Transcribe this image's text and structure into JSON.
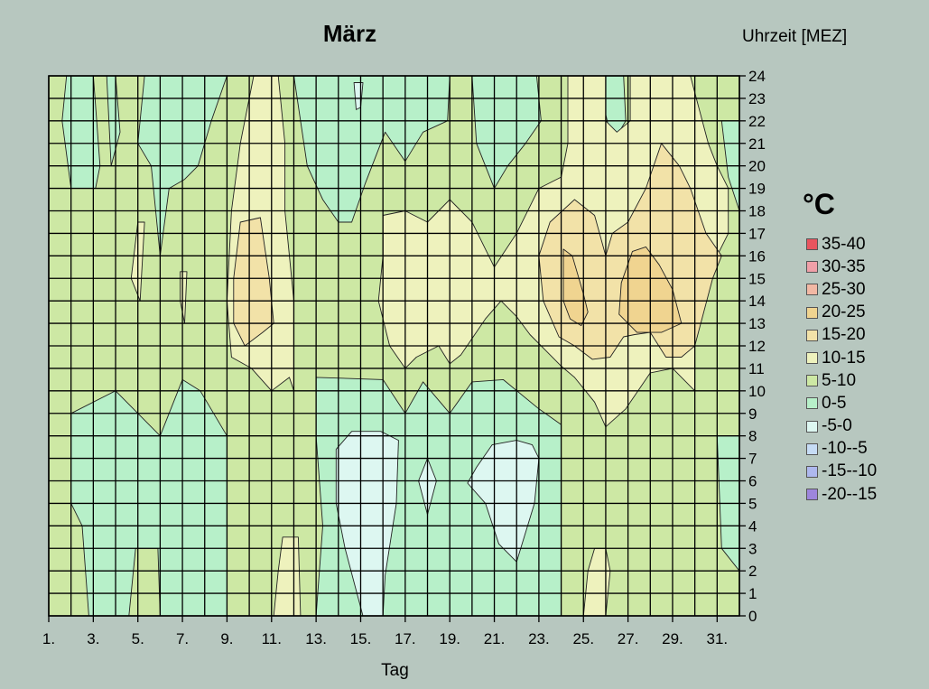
{
  "chart_data": {
    "type": "heatmap",
    "title": "März",
    "xlabel": "Tag",
    "ylabel_right": "Uhrzeit [MEZ]",
    "legend_title": "°C",
    "x_ticks": [
      "1.",
      "3.",
      "5.",
      "7.",
      "9.",
      "11.",
      "13.",
      "15.",
      "17.",
      "19.",
      "21.",
      "23.",
      "25.",
      "27.",
      "29.",
      "31."
    ],
    "y_ticks": [
      "0",
      "1",
      "2",
      "3",
      "4",
      "5",
      "6",
      "7",
      "8",
      "9",
      "10",
      "11",
      "12",
      "13",
      "14",
      "15",
      "16",
      "17",
      "18",
      "19",
      "20",
      "21",
      "22",
      "23",
      "24"
    ],
    "xlim": [
      1,
      32
    ],
    "ylim": [
      0,
      24
    ],
    "levels": [
      {
        "label": "35-40",
        "color": "#e8555f"
      },
      {
        "label": "30-35",
        "color": "#f0a0a8"
      },
      {
        "label": "25-30",
        "color": "#f2b8a4"
      },
      {
        "label": "20-25",
        "color": "#f0d490"
      },
      {
        "label": "15-20",
        "color": "#f2e2a8"
      },
      {
        "label": "10-15",
        "color": "#eef2bd"
      },
      {
        "label": "5-10",
        "color": "#cde8a4"
      },
      {
        "label": "0-5",
        "color": "#b7f0c9"
      },
      {
        "label": "-5-0",
        "color": "#ddf7f1"
      },
      {
        "label": "-10--5",
        "color": "#c6dcf5"
      },
      {
        "label": "-15--10",
        "color": "#aeb8ee"
      },
      {
        "label": "-20--15",
        "color": "#9d86dc"
      }
    ],
    "regions": [
      {
        "level": "0-5",
        "polygon": [
          [
            1.8,
            24
          ],
          [
            3.0,
            24
          ],
          [
            3.3,
            20
          ],
          [
            3.1,
            19
          ],
          [
            2.0,
            19
          ],
          [
            1.6,
            22
          ]
        ]
      },
      {
        "level": "0-5",
        "polygon": [
          [
            3.6,
            24
          ],
          [
            4.0,
            24
          ],
          [
            4.2,
            21.5
          ],
          [
            3.8,
            20
          ]
        ]
      },
      {
        "level": "0-5",
        "polygon": [
          [
            5.3,
            24
          ],
          [
            9.0,
            24
          ],
          [
            8.3,
            22
          ],
          [
            7.7,
            20
          ],
          [
            7.1,
            19.4
          ],
          [
            6.4,
            19
          ],
          [
            6.0,
            16
          ],
          [
            5.6,
            20
          ],
          [
            5.0,
            21
          ]
        ]
      },
      {
        "level": "0-5",
        "polygon": [
          [
            12.0,
            24
          ],
          [
            19.0,
            24
          ],
          [
            18.9,
            22
          ],
          [
            17.8,
            21.5
          ],
          [
            17.0,
            20.2
          ],
          [
            16.1,
            21.5
          ],
          [
            15.2,
            19.2
          ],
          [
            14.6,
            17.5
          ],
          [
            14.0,
            17.5
          ],
          [
            13.3,
            18.5
          ],
          [
            12.6,
            20
          ]
        ]
      },
      {
        "level": "0-5",
        "polygon": [
          [
            20.0,
            24
          ],
          [
            22.9,
            24
          ],
          [
            23.1,
            22
          ],
          [
            22.4,
            21
          ],
          [
            21.6,
            20
          ],
          [
            21.0,
            19
          ],
          [
            20.2,
            21
          ]
        ]
      },
      {
        "level": "0-5",
        "polygon": [
          [
            25.6,
            24
          ],
          [
            26.8,
            24
          ],
          [
            26.9,
            22
          ],
          [
            26.3,
            21
          ]
        ]
      },
      {
        "level": "0-5",
        "polygon": [
          [
            31.2,
            22
          ],
          [
            32.0,
            22
          ],
          [
            32.0,
            18
          ],
          [
            31.5,
            19.5
          ]
        ]
      },
      {
        "level": "0-5",
        "polygon": [
          [
            2.0,
            9
          ],
          [
            4.0,
            10
          ],
          [
            6.0,
            8
          ],
          [
            7.0,
            10.5
          ],
          [
            7.8,
            10
          ],
          [
            9.0,
            8
          ],
          [
            9.0,
            0
          ],
          [
            6.0,
            0
          ],
          [
            5.9,
            3
          ],
          [
            4.9,
            3
          ],
          [
            4.6,
            0
          ],
          [
            2.8,
            0
          ],
          [
            2.5,
            4
          ],
          [
            2.0,
            5
          ]
        ]
      },
      {
        "level": "0-5",
        "polygon": [
          [
            13.0,
            10.6
          ],
          [
            16.0,
            10.5
          ],
          [
            17.0,
            9
          ],
          [
            17.8,
            10.4
          ],
          [
            19.0,
            9.0
          ],
          [
            20.0,
            10.4
          ],
          [
            21.4,
            10.5
          ],
          [
            23.0,
            9.2
          ],
          [
            24.0,
            8.5
          ],
          [
            24.0,
            0
          ],
          [
            13.0,
            0
          ],
          [
            13.3,
            4
          ],
          [
            13.0,
            8
          ]
        ]
      },
      {
        "level": "0-5",
        "polygon": [
          [
            31.0,
            8
          ],
          [
            32.0,
            8
          ],
          [
            32.0,
            2
          ],
          [
            31.2,
            3.0
          ]
        ]
      },
      {
        "level": "-5-0",
        "polygon": [
          [
            14.6,
            8.2
          ],
          [
            15.9,
            8.2
          ],
          [
            16.7,
            7.8
          ],
          [
            16.6,
            5
          ],
          [
            16.1,
            1.8
          ],
          [
            16.0,
            0
          ],
          [
            15.1,
            0
          ],
          [
            14.3,
            3.0
          ],
          [
            13.9,
            5
          ],
          [
            13.9,
            7.4
          ]
        ]
      },
      {
        "level": "-5-0",
        "polygon": [
          [
            18.0,
            7
          ],
          [
            18.4,
            6
          ],
          [
            18.0,
            4.5
          ],
          [
            17.6,
            6
          ]
        ]
      },
      {
        "level": "-5-0",
        "polygon": [
          [
            20.9,
            7.6
          ],
          [
            22.0,
            7.8
          ],
          [
            22.7,
            7.6
          ],
          [
            23.0,
            7.0
          ],
          [
            22.8,
            5
          ],
          [
            22.0,
            2.4
          ],
          [
            21.2,
            3.2
          ],
          [
            20.6,
            5.0
          ],
          [
            19.8,
            5.9
          ],
          [
            20.2,
            6.6
          ]
        ]
      },
      {
        "level": "-5-0",
        "polygon": [
          [
            14.7,
            23.7
          ],
          [
            15.1,
            23.7
          ],
          [
            15.0,
            22.6
          ],
          [
            14.8,
            22.5
          ]
        ]
      },
      {
        "level": "10-15",
        "polygon": [
          [
            10.2,
            24
          ],
          [
            11.3,
            24
          ],
          [
            11.6,
            21
          ],
          [
            11.6,
            18
          ],
          [
            12.0,
            14
          ],
          [
            12.0,
            10
          ],
          [
            11.8,
            10.6
          ],
          [
            11.0,
            10
          ],
          [
            10.1,
            11
          ],
          [
            9.2,
            11.5
          ],
          [
            9.0,
            14
          ],
          [
            9.2,
            18
          ],
          [
            9.6,
            21
          ]
        ]
      },
      {
        "level": "10-15",
        "polygon": [
          [
            5.0,
            17.5
          ],
          [
            5.3,
            17.5
          ],
          [
            5.1,
            14
          ],
          [
            4.7,
            15
          ]
        ]
      },
      {
        "level": "10-15",
        "polygon": [
          [
            6.9,
            15.3
          ],
          [
            7.2,
            15.3
          ],
          [
            7.1,
            13
          ],
          [
            6.9,
            14
          ]
        ]
      },
      {
        "level": "10-15",
        "polygon": [
          [
            16.0,
            17.8
          ],
          [
            17.0,
            18
          ],
          [
            18.0,
            17.5
          ],
          [
            19.0,
            18.5
          ],
          [
            20.0,
            17.5
          ],
          [
            21.0,
            15.5
          ],
          [
            22.0,
            17
          ],
          [
            23.0,
            19
          ],
          [
            24.0,
            19.5
          ],
          [
            24.3,
            21
          ],
          [
            24.3,
            24
          ],
          [
            26.0,
            24
          ],
          [
            26.0,
            22
          ],
          [
            26.5,
            21.5
          ],
          [
            27.1,
            22
          ],
          [
            27.1,
            24
          ],
          [
            29.8,
            24
          ],
          [
            30.6,
            21
          ],
          [
            31.0,
            20
          ],
          [
            31.5,
            19
          ],
          [
            31.5,
            17
          ],
          [
            31.0,
            16
          ],
          [
            30.0,
            14
          ],
          [
            30.0,
            10
          ],
          [
            29.0,
            11
          ],
          [
            28.0,
            10.8
          ],
          [
            26.9,
            9.2
          ],
          [
            26.0,
            8.4
          ],
          [
            25.5,
            9.5
          ],
          [
            24.6,
            10.6
          ],
          [
            24.0,
            11.1
          ],
          [
            22.6,
            12.5
          ],
          [
            22.0,
            13.3
          ],
          [
            21.3,
            14
          ],
          [
            20.6,
            13.2
          ],
          [
            19.5,
            11.6
          ],
          [
            19.0,
            11.2
          ],
          [
            18.5,
            12.0
          ],
          [
            17.5,
            11.5
          ],
          [
            17.0,
            11.0
          ],
          [
            16.3,
            12
          ],
          [
            15.8,
            14
          ],
          [
            16.0,
            16
          ]
        ]
      },
      {
        "level": "10-15",
        "polygon": [
          [
            11.5,
            3.5
          ],
          [
            12.2,
            3.5
          ],
          [
            12.3,
            0
          ],
          [
            11.1,
            0
          ],
          [
            11.3,
            2
          ]
        ]
      },
      {
        "level": "10-15",
        "polygon": [
          [
            25.5,
            3
          ],
          [
            26.0,
            3
          ],
          [
            26.2,
            2
          ],
          [
            26.0,
            0
          ],
          [
            25.0,
            0
          ],
          [
            25.2,
            2
          ]
        ]
      },
      {
        "level": "15-20",
        "polygon": [
          [
            9.6,
            17.5
          ],
          [
            10.5,
            17.7
          ],
          [
            10.9,
            15
          ],
          [
            11.1,
            13
          ],
          [
            10.6,
            12.6
          ],
          [
            9.8,
            12.0
          ],
          [
            9.3,
            13
          ],
          [
            9.3,
            15
          ]
        ]
      },
      {
        "level": "15-20",
        "polygon": [
          [
            24.6,
            18.5
          ],
          [
            25.5,
            17.8
          ],
          [
            26.0,
            16
          ],
          [
            26.3,
            17
          ],
          [
            27.0,
            17.5
          ],
          [
            27.8,
            19
          ],
          [
            28.5,
            21
          ],
          [
            29.3,
            20
          ],
          [
            29.8,
            19
          ],
          [
            30.5,
            17
          ],
          [
            31.2,
            16
          ],
          [
            30.8,
            15
          ],
          [
            30.0,
            12
          ],
          [
            29.4,
            11.5
          ],
          [
            28.7,
            11.5
          ],
          [
            28.0,
            12.6
          ],
          [
            27.3,
            12.5
          ],
          [
            26.8,
            12.4
          ],
          [
            26.2,
            11.5
          ],
          [
            25.4,
            11.4
          ],
          [
            24.6,
            12.0
          ],
          [
            23.9,
            12.4
          ],
          [
            23.2,
            14
          ],
          [
            23.0,
            16
          ],
          [
            23.5,
            17.5
          ]
        ]
      },
      {
        "level": "20-25",
        "polygon": [
          [
            24.1,
            16.3
          ],
          [
            24.5,
            16
          ],
          [
            25.0,
            14.3
          ],
          [
            25.2,
            13.5
          ],
          [
            24.9,
            12.9
          ],
          [
            24.4,
            13.2
          ],
          [
            24.1,
            14
          ]
        ]
      },
      {
        "level": "20-25",
        "polygon": [
          [
            27.2,
            16.2
          ],
          [
            27.8,
            16.4
          ],
          [
            28.4,
            15.6
          ],
          [
            29.0,
            14.5
          ],
          [
            29.4,
            13.0
          ],
          [
            28.5,
            12.6
          ],
          [
            27.4,
            12.6
          ],
          [
            26.6,
            13.4
          ],
          [
            26.7,
            14.8
          ]
        ]
      }
    ]
  }
}
